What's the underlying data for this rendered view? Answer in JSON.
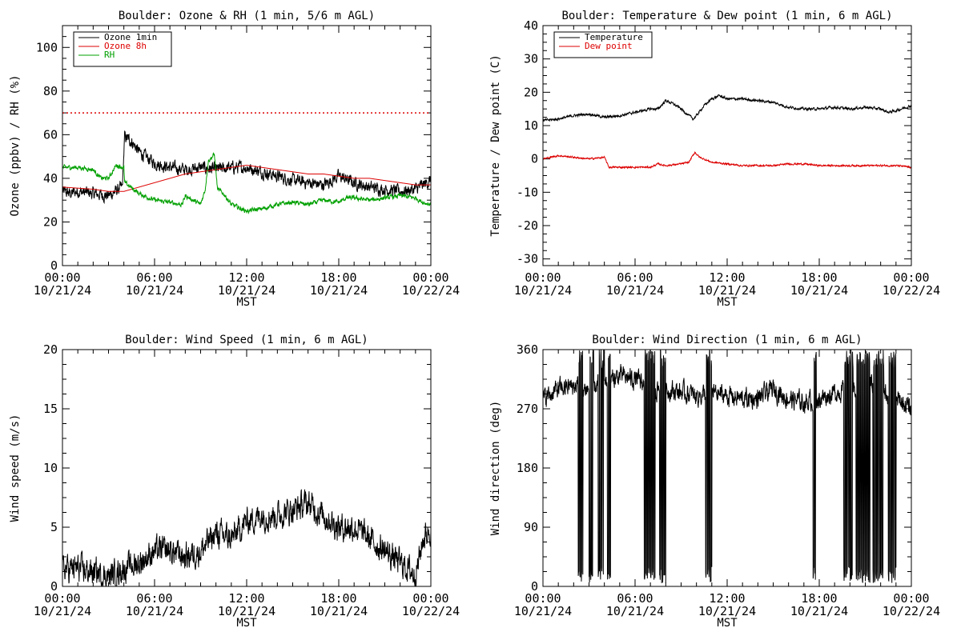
{
  "colors": {
    "black": "#000000",
    "red": "#dd0000",
    "green": "#00a000"
  },
  "x_axis": {
    "tick_times": [
      "00:00",
      "06:00",
      "12:00",
      "18:00",
      "00:00"
    ],
    "tick_dates": [
      "10/21/24",
      "10/21/24",
      "10/21/24",
      "10/21/24",
      "10/22/24"
    ],
    "label": "MST",
    "range_hours": [
      0,
      24
    ]
  },
  "chart_data": [
    {
      "type": "line",
      "title": "Boulder: Ozone & RH (1 min, 5/6 m AGL)",
      "ylabel": "Ozone (ppbv) / RH (%)",
      "ylim": [
        0,
        110
      ],
      "yticks": [
        0,
        20,
        40,
        60,
        80,
        100
      ],
      "legend": "top-left",
      "reference_line": {
        "y": 70,
        "color": "#dd0000",
        "style": "dotted"
      },
      "series": [
        {
          "name": "Ozone 1min",
          "color": "#000000",
          "noise": 2.2,
          "x": [
            0,
            0.5,
            1,
            2,
            3,
            3.9,
            4.05,
            4.5,
            5,
            6,
            7,
            8,
            9,
            10,
            11,
            12,
            13,
            14,
            15,
            16,
            17,
            18,
            19,
            20,
            21,
            22,
            23,
            24
          ],
          "y": [
            34,
            33,
            34,
            33,
            32,
            36,
            59,
            57,
            52,
            47,
            45,
            44,
            45,
            44,
            45,
            45,
            43,
            41,
            39,
            38,
            37,
            41,
            38,
            36,
            35,
            34,
            35,
            39
          ]
        },
        {
          "name": "Ozone 8h",
          "color": "#dd0000",
          "noise": 0,
          "x": [
            0,
            2,
            3,
            4,
            5,
            6,
            7,
            8,
            9,
            10,
            11,
            12,
            13,
            14,
            15,
            16,
            17,
            18,
            19,
            20,
            21,
            22,
            23,
            24
          ],
          "y": [
            36,
            35,
            34,
            34,
            36,
            38,
            40,
            42,
            43,
            44,
            45,
            46,
            45,
            44,
            43,
            42,
            42,
            41,
            40,
            40,
            39,
            38,
            37,
            37
          ]
        },
        {
          "name": "RH",
          "color": "#00a000",
          "noise": 0.8,
          "x": [
            0,
            1,
            2,
            2.5,
            3,
            3.5,
            4,
            4.05,
            5,
            6,
            7,
            7.8,
            8,
            9,
            9.3,
            9.5,
            9.9,
            10.1,
            10.5,
            11,
            12,
            13,
            14,
            15,
            16,
            17,
            18,
            18.5,
            19,
            20,
            21,
            22,
            23,
            23.5,
            24
          ],
          "y": [
            45,
            45,
            44,
            40,
            40,
            46,
            45,
            38,
            33,
            30,
            29,
            28,
            32,
            28,
            35,
            48,
            51,
            35,
            33,
            28,
            25,
            26,
            28,
            29,
            28,
            30,
            29,
            31,
            31,
            30,
            31,
            32,
            31,
            29,
            28
          ]
        }
      ]
    },
    {
      "type": "line",
      "title": "Boulder: Temperature & Dew point (1 min, 6 m AGL)",
      "ylabel": "Temperature / Dew point (C)",
      "ylim": [
        -32,
        40
      ],
      "yticks": [
        -30,
        -20,
        -10,
        0,
        10,
        20,
        30,
        40
      ],
      "legend": "top-left",
      "series": [
        {
          "name": "Temperature",
          "color": "#000000",
          "noise": 0.3,
          "x": [
            0,
            1,
            2,
            3,
            4,
            5,
            6,
            7,
            7.5,
            8,
            8.5,
            9,
            9.5,
            9.8,
            10,
            10.5,
            11,
            11.5,
            12,
            13,
            14,
            15,
            16,
            17,
            18,
            19,
            20,
            21,
            22,
            22.5,
            23,
            24
          ],
          "y": [
            11.5,
            12,
            13,
            13.5,
            12.5,
            13,
            14,
            15,
            15,
            17.5,
            16.5,
            15,
            13,
            12,
            13,
            16,
            18,
            19,
            18,
            18,
            17.5,
            17,
            15.5,
            15,
            15,
            15.5,
            15,
            15.5,
            15,
            14,
            14.5,
            16
          ]
        },
        {
          "name": "Dew point",
          "color": "#dd0000",
          "noise": 0.2,
          "x": [
            0,
            1,
            2,
            3,
            4,
            4.3,
            5,
            6,
            7,
            7.5,
            8,
            9,
            9.5,
            9.9,
            10.2,
            11,
            12,
            13,
            14,
            15,
            16,
            17,
            18,
            19,
            20,
            21,
            22,
            23,
            24
          ],
          "y": [
            0,
            1,
            0.5,
            0,
            0.5,
            -2.5,
            -2.5,
            -2.5,
            -2.5,
            -1.5,
            -2,
            -1.5,
            -1,
            2,
            0.5,
            -1,
            -1.5,
            -2,
            -2,
            -2,
            -1.5,
            -1.5,
            -2,
            -2,
            -2,
            -2,
            -2,
            -2,
            -2.5
          ]
        }
      ]
    },
    {
      "type": "line",
      "title": "Boulder: Wind Speed (1 min, 6 m AGL)",
      "ylabel": "Wind speed (m/s)",
      "ylim": [
        0,
        20
      ],
      "yticks": [
        0,
        5,
        10,
        15,
        20
      ],
      "series": [
        {
          "color": "#000000",
          "noise": 0.9,
          "min": 0,
          "x": [
            0,
            1,
            2,
            3,
            4,
            5,
            6,
            7,
            8,
            9,
            10,
            11,
            12,
            13,
            14,
            15,
            16,
            17,
            18,
            19,
            20,
            21,
            22,
            22.5,
            23,
            23.5,
            24
          ],
          "y": [
            1.5,
            1.5,
            1.2,
            0.8,
            1.5,
            2,
            3,
            3,
            2.5,
            3,
            4.5,
            4,
            5.5,
            6,
            6,
            6.5,
            7,
            6,
            5,
            5,
            4,
            3,
            2,
            1.5,
            1,
            4,
            5
          ]
        }
      ]
    },
    {
      "type": "line",
      "title": "Boulder: Wind Direction (1 min, 6 m AGL)",
      "ylabel": "Wind direction (deg)",
      "ylim": [
        0,
        360
      ],
      "yticks": [
        0,
        90,
        180,
        270,
        360
      ],
      "series": [
        {
          "color": "#000000",
          "noise": 12,
          "min": 0,
          "max": 360,
          "x": [
            0,
            1,
            2,
            3,
            4,
            5,
            6,
            7,
            8,
            9,
            10,
            11,
            12,
            13,
            14,
            15,
            16,
            17,
            18,
            19,
            20,
            21,
            22,
            23,
            24
          ],
          "y": [
            285,
            300,
            305,
            300,
            310,
            320,
            315,
            300,
            300,
            295,
            290,
            295,
            290,
            285,
            285,
            300,
            285,
            280,
            285,
            295,
            300,
            305,
            300,
            285,
            270
          ],
          "spikes": [
            [
              2.3,
              2.6
            ],
            [
              3.0,
              3.3
            ],
            [
              3.6,
              4.0
            ],
            [
              4.2,
              4.4
            ],
            [
              6.6,
              7.3
            ],
            [
              7.6,
              8.0
            ],
            [
              10.6,
              11.0
            ],
            [
              17.6,
              17.8
            ],
            [
              19.6,
              20.2
            ],
            [
              20.4,
              21.3
            ],
            [
              21.5,
              22.2
            ],
            [
              22.5,
              23.0
            ]
          ]
        }
      ]
    }
  ]
}
